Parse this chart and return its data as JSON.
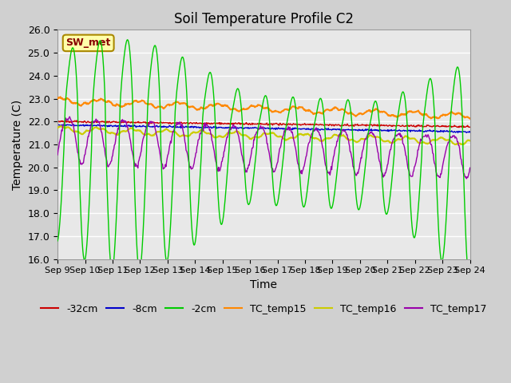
{
  "title": "Soil Temperature Profile C2",
  "xlabel": "Time",
  "ylabel": "Temperature (C)",
  "ylim": [
    16.0,
    26.0
  ],
  "yticks": [
    16.0,
    17.0,
    18.0,
    19.0,
    20.0,
    21.0,
    22.0,
    23.0,
    24.0,
    25.0,
    26.0
  ],
  "x_labels": [
    "Sep 9",
    "Sep 10",
    "Sep 11",
    "Sep 12",
    "Sep 13",
    "Sep 14",
    "Sep 15",
    "Sep 16",
    "Sep 17",
    "Sep 18",
    "Sep 19",
    "Sep 20",
    "Sep 21",
    "Sep 22",
    "Sep 23",
    "Sep 24"
  ],
  "n_days": 15,
  "fig_bg_color": "#d0d0d0",
  "plot_bg_color": "#e8e8e8",
  "sw_met_label": "SW_met",
  "sw_met_bg": "#ffffaa",
  "sw_met_border": "#aa8800",
  "sw_met_text_color": "#880000",
  "line_green_color": "#00cc00",
  "line_orange_color": "#ff8800",
  "line_yellow_color": "#cccc00",
  "line_purple_color": "#9900aa",
  "line_red_color": "#cc0000",
  "line_blue_color": "#0000cc",
  "legend_labels": [
    "-32cm",
    "-8cm",
    "-2cm",
    "TC_temp15",
    "TC_temp16",
    "TC_temp17"
  ]
}
